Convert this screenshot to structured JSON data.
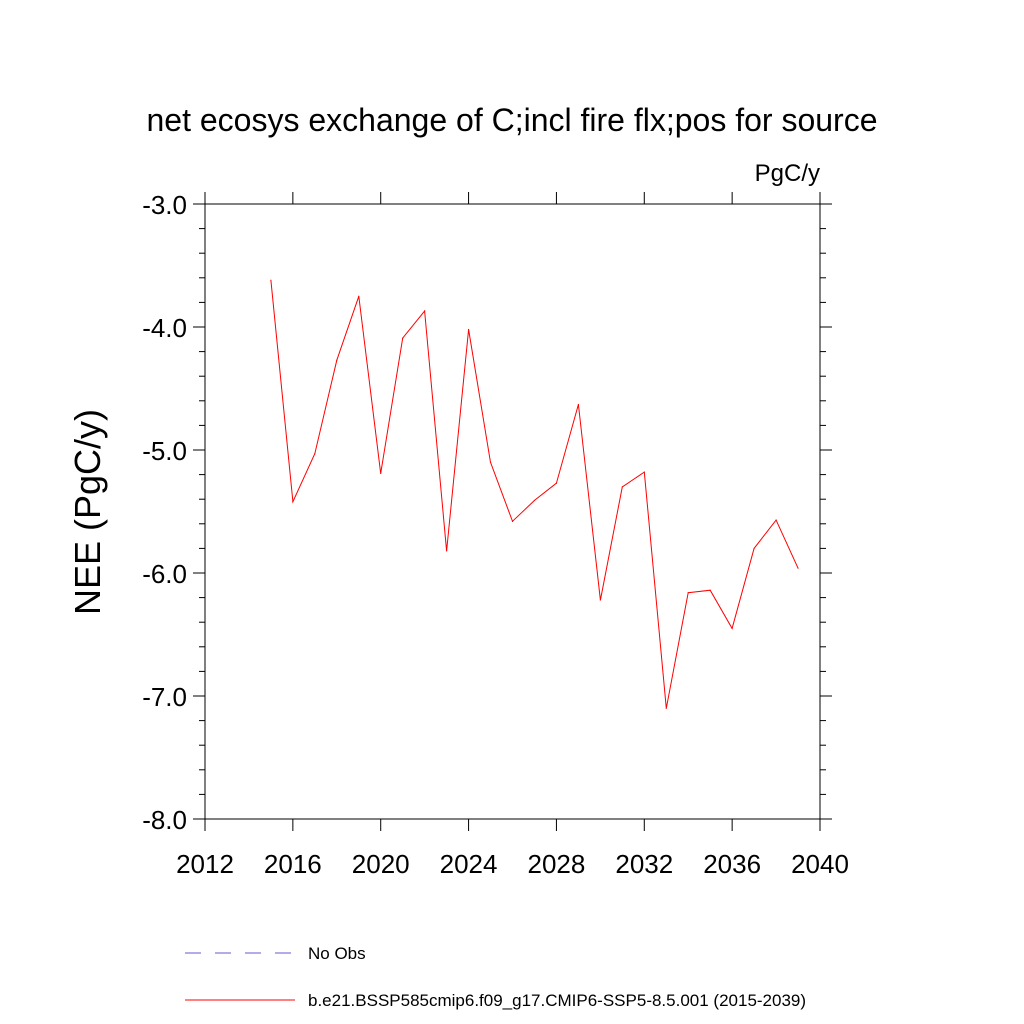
{
  "chart_data": {
    "type": "line",
    "title": "net ecosys exchange of C;incl fire flx;pos for source",
    "units_label": "PgC/y",
    "ylabel": "NEE  (PgC/y)",
    "xlabel": "",
    "xlim": [
      2012,
      2040
    ],
    "ylim": [
      -8.0,
      -3.0
    ],
    "x_ticks": [
      2012,
      2016,
      2020,
      2024,
      2028,
      2032,
      2036,
      2040
    ],
    "y_ticks": [
      -8.0,
      -7.0,
      -6.0,
      -5.0,
      -4.0,
      -3.0
    ],
    "x_tick_labels": [
      "2012",
      "2016",
      "2020",
      "2024",
      "2028",
      "2032",
      "2036",
      "2040"
    ],
    "y_tick_labels": [
      "-8.0",
      "-7.0",
      "-6.0",
      "-5.0",
      "-4.0",
      "-3.0"
    ],
    "grid": false,
    "legend_position": "bottom",
    "series": [
      {
        "name": "b.e21.BSSP585cmip6.f09_g17.CMIP6-SSP5-8.5.001 (2015-2039)",
        "color": "#ff0000",
        "dash": "solid",
        "x": [
          2015,
          2016,
          2017,
          2018,
          2019,
          2020,
          2021,
          2022,
          2023,
          2024,
          2025,
          2026,
          2027,
          2028,
          2029,
          2030,
          2031,
          2032,
          2033,
          2034,
          2035,
          2036,
          2037,
          2038,
          2039
        ],
        "values": [
          -3.62,
          -5.42,
          -5.03,
          -4.27,
          -3.75,
          -5.19,
          -4.09,
          -3.87,
          -5.82,
          -4.02,
          -5.1,
          -5.58,
          -5.41,
          -5.27,
          -4.63,
          -6.22,
          -5.3,
          -5.18,
          -7.1,
          -6.16,
          -6.14,
          -6.45,
          -5.8,
          -5.57,
          -5.96
        ]
      }
    ],
    "legend": [
      {
        "label": "No Obs",
        "color": "#6a5acd",
        "dash": "dashed"
      },
      {
        "label": "b.e21.BSSP585cmip6.f09_g17.CMIP6-SSP5-8.5.001 (2015-2039)",
        "color": "#ff0000",
        "dash": "solid"
      }
    ]
  }
}
